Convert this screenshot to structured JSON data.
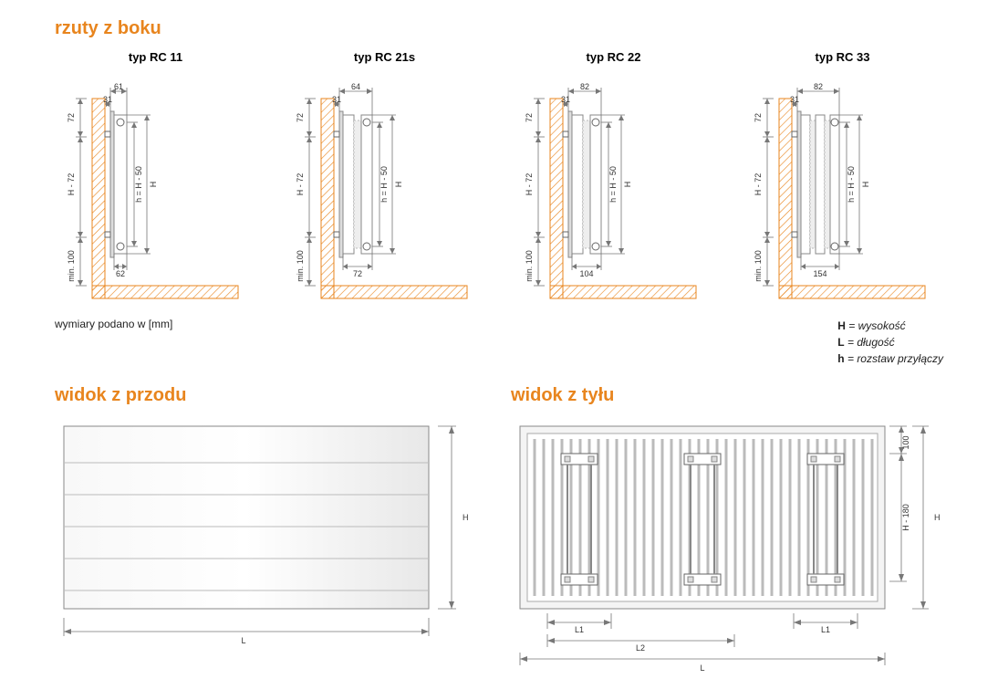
{
  "sections": {
    "side_title": "rzuty z boku",
    "front_title": "widok z przodu",
    "back_title": "widok z tyłu",
    "units_note": "wymiary podano w [mm]"
  },
  "colors": {
    "accent": "#e8851e",
    "line": "#777777",
    "text": "#333333",
    "fill": "#ffffff",
    "shade": "#eeeeee"
  },
  "legend": {
    "H": "wysokość",
    "L": "długość",
    "h": "rozstaw przyłączy"
  },
  "side_views": [
    {
      "type": "typ RC 11",
      "top_gap": "61",
      "wall_gap": "31",
      "top_wall": "72",
      "bottom_width": "62",
      "H_label": "H - 72",
      "h_label": "h = H - 50",
      "H_dim": "H",
      "min_floor": "min. 100",
      "panels": 1
    },
    {
      "type": "typ RC 21s",
      "top_gap": "64",
      "wall_gap": "31",
      "top_wall": "72",
      "bottom_width": "72",
      "H_label": "H - 72",
      "h_label": "h = H - 50",
      "H_dim": "H",
      "min_floor": "min. 100",
      "panels": 2
    },
    {
      "type": "typ RC 22",
      "top_gap": "82",
      "wall_gap": "31",
      "top_wall": "72",
      "bottom_width": "104",
      "H_label": "H - 72",
      "h_label": "h = H - 50",
      "H_dim": "H",
      "min_floor": "min. 100",
      "panels": 2
    },
    {
      "type": "typ RC 33",
      "top_gap": "82",
      "wall_gap": "31",
      "top_wall": "72",
      "bottom_width": "154",
      "H_label": "H - 72",
      "h_label": "h = H - 50",
      "H_dim": "H",
      "min_floor": "min. 100",
      "panels": 3
    }
  ],
  "front_view": {
    "L": "L",
    "H": "H"
  },
  "back_view": {
    "L": "L",
    "L1": "L1",
    "L2": "L2",
    "H": "H",
    "H_inner": "H - 180",
    "top_margin": "100"
  }
}
